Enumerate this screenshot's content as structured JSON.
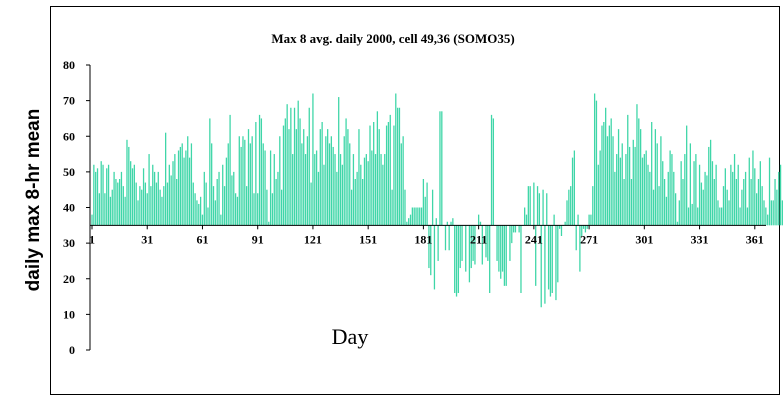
{
  "chart_data": {
    "type": "bar",
    "title": "Max 8 avg. daily 2000, cell 49,36 (SOMO35)",
    "xlabel": "Day",
    "ylabel": "daily max 8-hr mean",
    "baseline": 35,
    "ylim": [
      0,
      80
    ],
    "y_ticks": [
      0,
      10,
      20,
      30,
      40,
      50,
      60,
      70,
      80
    ],
    "xlim": [
      1,
      366
    ],
    "x_ticks": [
      1,
      31,
      61,
      91,
      121,
      151,
      181,
      211,
      241,
      271,
      301,
      331,
      361
    ],
    "bar_color": "#3fd6a8",
    "grid": false,
    "legend": "none",
    "x_start": 1,
    "values": [
      38,
      52,
      50,
      51,
      44,
      53,
      52,
      44,
      51,
      52,
      43,
      45,
      50,
      48,
      47,
      48,
      50,
      46,
      43,
      59,
      57,
      53,
      51,
      52,
      47,
      42,
      46,
      45,
      51,
      47,
      44,
      55,
      46,
      52,
      50,
      47,
      50,
      45,
      43,
      46,
      61,
      47,
      52,
      49,
      53,
      55,
      48,
      56,
      57,
      58,
      54,
      56,
      60,
      54,
      58,
      47,
      44,
      42,
      41,
      43,
      38,
      50,
      47,
      40,
      65,
      58,
      46,
      42,
      48,
      50,
      38,
      52,
      46,
      54,
      58,
      66,
      49,
      50,
      44,
      43,
      60,
      57,
      60,
      59,
      46,
      62,
      58,
      60,
      44,
      64,
      44,
      66,
      65,
      58,
      56,
      45,
      36,
      56,
      44,
      55,
      48,
      50,
      60,
      45,
      63,
      65,
      69,
      62,
      68,
      55,
      68,
      62,
      70,
      65,
      58,
      62,
      55,
      60,
      68,
      47,
      72,
      55,
      56,
      50,
      62,
      64,
      52,
      60,
      62,
      58,
      60,
      57,
      55,
      50,
      71,
      55,
      52,
      60,
      65,
      62,
      58,
      45,
      55,
      48,
      50,
      62,
      52,
      48,
      54,
      55,
      53,
      63,
      56,
      64,
      55,
      67,
      62,
      55,
      52,
      55,
      63,
      64,
      66,
      45,
      63,
      72,
      68,
      68,
      58,
      60,
      45,
      36,
      37,
      38,
      40,
      40,
      40,
      40,
      40,
      40,
      48,
      43,
      47,
      23,
      21,
      45,
      17,
      37,
      25,
      67,
      67,
      35,
      28,
      36,
      28,
      36,
      37,
      16,
      15,
      16,
      23,
      25,
      35,
      22,
      35,
      19,
      23,
      25,
      24,
      35,
      38,
      36,
      24,
      35,
      26,
      25,
      16,
      66,
      65,
      35,
      25,
      22,
      20,
      22,
      18,
      18,
      35,
      25,
      30,
      33,
      33,
      35,
      33,
      16,
      35,
      40,
      38,
      46,
      46,
      35,
      47,
      18,
      46,
      44,
      12,
      45,
      13,
      44,
      17,
      15,
      16,
      38,
      14,
      19,
      34,
      32,
      35,
      36,
      42,
      45,
      46,
      54,
      56,
      28,
      38,
      22,
      32,
      34,
      33,
      34,
      38,
      38,
      46,
      72,
      70,
      52,
      56,
      63,
      64,
      68,
      60,
      63,
      65,
      60,
      50,
      55,
      62,
      54,
      58,
      48,
      55,
      66,
      57,
      48,
      59,
      57,
      69,
      65,
      62,
      54,
      55,
      56,
      52,
      50,
      64,
      45,
      62,
      58,
      46,
      60,
      53,
      48,
      43,
      50,
      56,
      55,
      50,
      44,
      36,
      42,
      53,
      48,
      55,
      63,
      40,
      58,
      41,
      53,
      55,
      40,
      52,
      47,
      45,
      50,
      49,
      57,
      59,
      53,
      48,
      52,
      42,
      40,
      40,
      46,
      51,
      45,
      42,
      52,
      50,
      55,
      48,
      52,
      40,
      45,
      48,
      50,
      40,
      54,
      48,
      56,
      51,
      44,
      48,
      53,
      46,
      42,
      40,
      38,
      54,
      42,
      42,
      48,
      45,
      50,
      52,
      42,
      46,
      55,
      53,
      45,
      48,
      47
    ]
  },
  "x_axis_title": "Day"
}
